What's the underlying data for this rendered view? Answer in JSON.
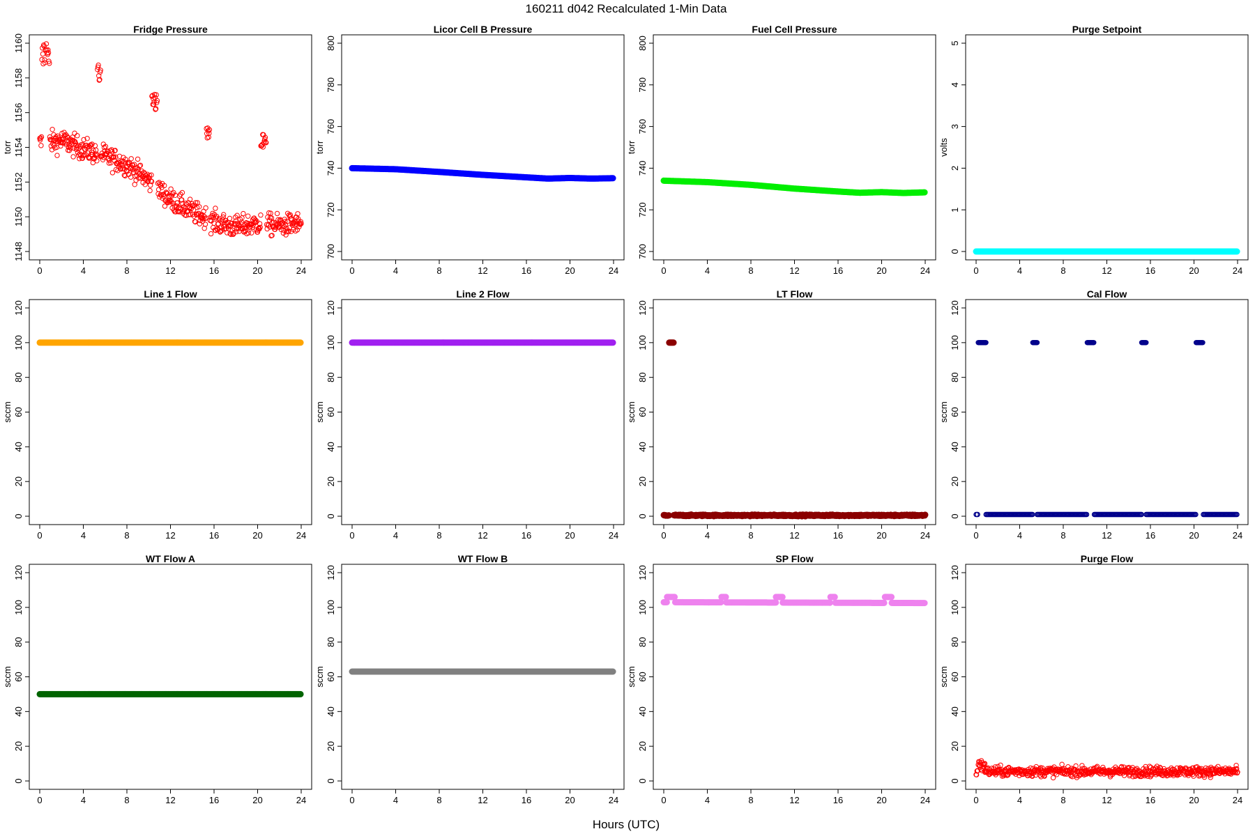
{
  "figure": {
    "title": "160211   d042   Recalculated 1-Min Data",
    "xlabel": "Hours (UTC)"
  },
  "chart_data": [
    {
      "type": "scatter",
      "title": "Fridge Pressure",
      "ylabel": "torr",
      "color": "#ff0000",
      "marker": "open-circle",
      "xlim": [
        0,
        24
      ],
      "ylim": [
        1148,
        1160
      ],
      "xticks": [
        0,
        4,
        8,
        12,
        16,
        20,
        24
      ],
      "yticks": [
        1148,
        1150,
        1152,
        1154,
        1156,
        1158,
        1160
      ],
      "baseline": [
        [
          0,
          1154.2
        ],
        [
          2,
          1154.4
        ],
        [
          4,
          1153.9
        ],
        [
          6,
          1153.5
        ],
        [
          8,
          1153.0
        ],
        [
          10,
          1152.1
        ],
        [
          12,
          1151.0
        ],
        [
          14,
          1150.3
        ],
        [
          16,
          1149.7
        ],
        [
          18,
          1149.4
        ],
        [
          20,
          1149.6
        ],
        [
          22,
          1149.5
        ],
        [
          24,
          1149.6
        ]
      ],
      "noise": 0.45,
      "spikes": [
        {
          "x": [
            0.2,
            0.9
          ],
          "y": 1159.2,
          "spread": 0.7
        },
        {
          "x": [
            5.3,
            5.6
          ],
          "y": 1158.4,
          "spread": 0.5
        },
        {
          "x": [
            10.3,
            10.8
          ],
          "y": 1156.6,
          "spread": 0.4
        },
        {
          "x": [
            15.3,
            15.6
          ],
          "y": 1154.7,
          "spread": 0.3
        },
        {
          "x": [
            20.3,
            20.8
          ],
          "y": 1154.3,
          "spread": 0.4
        }
      ]
    },
    {
      "type": "scatter",
      "title": "Licor Cell B Pressure",
      "ylabel": "torr",
      "color": "#0000ff",
      "marker": "filled-circle",
      "xlim": [
        0,
        24
      ],
      "ylim": [
        700,
        800
      ],
      "xticks": [
        0,
        4,
        8,
        12,
        16,
        20,
        24
      ],
      "yticks": [
        700,
        720,
        740,
        760,
        780,
        800
      ],
      "baseline": [
        [
          0,
          740
        ],
        [
          4,
          739.5
        ],
        [
          8,
          738.2
        ],
        [
          12,
          736.8
        ],
        [
          16,
          735.6
        ],
        [
          18,
          735
        ],
        [
          20,
          735.3
        ],
        [
          22,
          735
        ],
        [
          24,
          735.2
        ]
      ],
      "noise": 0
    },
    {
      "type": "scatter",
      "title": "Fuel Cell Pressure",
      "ylabel": "torr",
      "color": "#00ee00",
      "marker": "filled-circle",
      "xlim": [
        0,
        24
      ],
      "ylim": [
        700,
        800
      ],
      "xticks": [
        0,
        4,
        8,
        12,
        16,
        20,
        24
      ],
      "yticks": [
        700,
        720,
        740,
        760,
        780,
        800
      ],
      "baseline": [
        [
          0,
          734
        ],
        [
          4,
          733.3
        ],
        [
          8,
          732
        ],
        [
          12,
          730.2
        ],
        [
          16,
          728.8
        ],
        [
          18,
          728.2
        ],
        [
          20,
          728.5
        ],
        [
          22,
          728.1
        ],
        [
          24,
          728.4
        ]
      ],
      "noise": 0
    },
    {
      "type": "scatter",
      "title": "Purge Setpoint",
      "ylabel": "volts",
      "color": "#00ffff",
      "marker": "filled-circle",
      "xlim": [
        0,
        24
      ],
      "ylim": [
        0,
        5
      ],
      "xticks": [
        0,
        4,
        8,
        12,
        16,
        20,
        24
      ],
      "yticks": [
        0,
        1,
        2,
        3,
        4,
        5
      ],
      "baseline": [
        [
          0,
          0
        ],
        [
          24,
          0
        ]
      ],
      "noise": 0
    },
    {
      "type": "scatter",
      "title": "Line 1 Flow",
      "ylabel": "sccm",
      "color": "#ffa500",
      "marker": "filled-circle",
      "xlim": [
        0,
        24
      ],
      "ylim": [
        0,
        120
      ],
      "xticks": [
        0,
        4,
        8,
        12,
        16,
        20,
        24
      ],
      "yticks": [
        0,
        20,
        40,
        60,
        80,
        100,
        120
      ],
      "baseline": [
        [
          0,
          100
        ],
        [
          24,
          100
        ]
      ],
      "noise": 0
    },
    {
      "type": "scatter",
      "title": "Line 2 Flow",
      "ylabel": "sccm",
      "color": "#a020f0",
      "marker": "filled-circle",
      "xlim": [
        0,
        24
      ],
      "ylim": [
        0,
        120
      ],
      "xticks": [
        0,
        4,
        8,
        12,
        16,
        20,
        24
      ],
      "yticks": [
        0,
        20,
        40,
        60,
        80,
        100,
        120
      ],
      "baseline": [
        [
          0,
          100
        ],
        [
          24,
          100
        ]
      ],
      "noise": 0
    },
    {
      "type": "scatter",
      "title": "LT Flow",
      "ylabel": "sccm",
      "color": "#8b0000",
      "marker": "filled-circle",
      "xlim": [
        0,
        24
      ],
      "ylim": [
        0,
        120
      ],
      "xticks": [
        0,
        4,
        8,
        12,
        16,
        20,
        24
      ],
      "yticks": [
        0,
        20,
        40,
        60,
        80,
        100,
        120
      ],
      "baseline": [
        [
          0,
          0.5
        ],
        [
          24,
          0.5
        ]
      ],
      "noise": 0.3,
      "segments": [
        {
          "x": [
            0.5,
            0.9
          ],
          "y": 100
        }
      ]
    },
    {
      "type": "scatter",
      "title": "Cal Flow",
      "ylabel": "sccm",
      "color": "#00008b",
      "marker": "open-circle",
      "xlim": [
        0,
        24
      ],
      "ylim": [
        0,
        120
      ],
      "xticks": [
        0,
        4,
        8,
        12,
        16,
        20,
        24
      ],
      "yticks": [
        0,
        20,
        40,
        60,
        80,
        100,
        120
      ],
      "baseline": [
        [
          0,
          1
        ],
        [
          24,
          1
        ]
      ],
      "noise": 0,
      "segments": [
        {
          "x": [
            0.2,
            0.9
          ],
          "y": 100
        },
        {
          "x": [
            5.2,
            5.6
          ],
          "y": 100
        },
        {
          "x": [
            10.2,
            10.8
          ],
          "y": 100
        },
        {
          "x": [
            15.2,
            15.6
          ],
          "y": 100
        },
        {
          "x": [
            20.2,
            20.8
          ],
          "y": 100
        }
      ]
    },
    {
      "type": "scatter",
      "title": "WT Flow A",
      "ylabel": "sccm",
      "color": "#006400",
      "marker": "filled-circle",
      "xlim": [
        0,
        24
      ],
      "ylim": [
        0,
        120
      ],
      "xticks": [
        0,
        4,
        8,
        12,
        16,
        20,
        24
      ],
      "yticks": [
        0,
        20,
        40,
        60,
        80,
        100,
        120
      ],
      "baseline": [
        [
          0,
          50
        ],
        [
          24,
          50
        ]
      ],
      "noise": 0
    },
    {
      "type": "scatter",
      "title": "WT Flow B",
      "ylabel": "sccm",
      "color": "#808080",
      "marker": "filled-circle",
      "xlim": [
        0,
        24
      ],
      "ylim": [
        0,
        120
      ],
      "xticks": [
        0,
        4,
        8,
        12,
        16,
        20,
        24
      ],
      "yticks": [
        0,
        20,
        40,
        60,
        80,
        100,
        120
      ],
      "baseline": [
        [
          0,
          63
        ],
        [
          24,
          63
        ]
      ],
      "noise": 0
    },
    {
      "type": "scatter",
      "title": "SP Flow",
      "ylabel": "sccm",
      "color": "#ee82ee",
      "marker": "filled-circle",
      "xlim": [
        0,
        24
      ],
      "ylim": [
        0,
        120
      ],
      "xticks": [
        0,
        4,
        8,
        12,
        16,
        20,
        24
      ],
      "yticks": [
        0,
        20,
        40,
        60,
        80,
        100,
        120
      ],
      "baseline": [
        [
          0,
          103
        ],
        [
          24,
          102.5
        ]
      ],
      "noise": 0,
      "segments": [
        {
          "x": [
            0.3,
            1.0
          ],
          "y": 106
        },
        {
          "x": [
            5.3,
            5.7
          ],
          "y": 106
        },
        {
          "x": [
            10.3,
            10.9
          ],
          "y": 106
        },
        {
          "x": [
            15.3,
            15.7
          ],
          "y": 106
        },
        {
          "x": [
            20.3,
            20.9
          ],
          "y": 106
        }
      ]
    },
    {
      "type": "scatter",
      "title": "Purge Flow",
      "ylabel": "sccm",
      "color": "#ff0000",
      "marker": "open-circle",
      "xlim": [
        0,
        24
      ],
      "ylim": [
        0,
        120
      ],
      "xticks": [
        0,
        4,
        8,
        12,
        16,
        20,
        24
      ],
      "yticks": [
        0,
        20,
        40,
        60,
        80,
        100,
        120
      ],
      "baseline": [
        [
          0,
          5.5
        ],
        [
          24,
          5.5
        ]
      ],
      "noise": 2.0,
      "spikes": [
        {
          "x": [
            0.2,
            0.8
          ],
          "y": 8.5,
          "spread": 2.5
        }
      ]
    }
  ]
}
